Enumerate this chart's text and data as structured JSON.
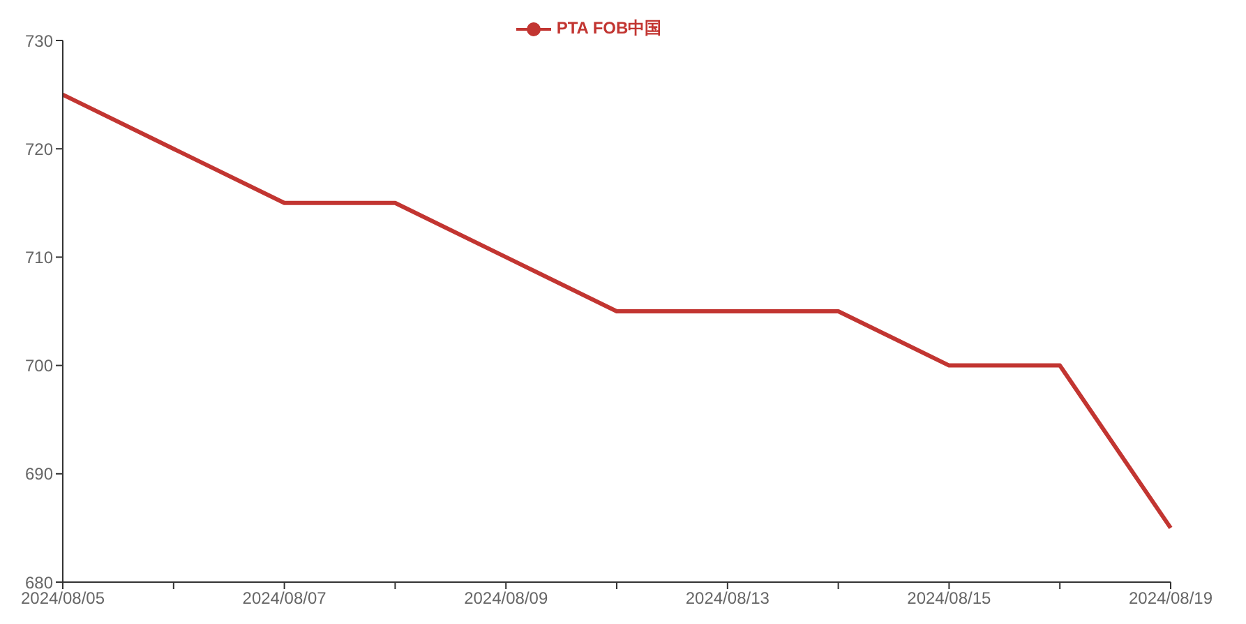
{
  "chart_data": {
    "type": "line",
    "categories": [
      "2024/08/05",
      null,
      "2024/08/07",
      null,
      "2024/08/09",
      null,
      "2024/08/13",
      null,
      "2024/08/15",
      null,
      "2024/08/19"
    ],
    "series": [
      {
        "name": "PTA FOB中国",
        "color": "#c23531",
        "values": [
          725,
          720,
          715,
          715,
          710,
          705,
          705,
          705,
          700,
          700,
          685
        ]
      }
    ],
    "ylim": [
      680,
      730
    ],
    "yticks": [
      680,
      690,
      700,
      710,
      720,
      730
    ],
    "grid": false,
    "legend": "top"
  }
}
